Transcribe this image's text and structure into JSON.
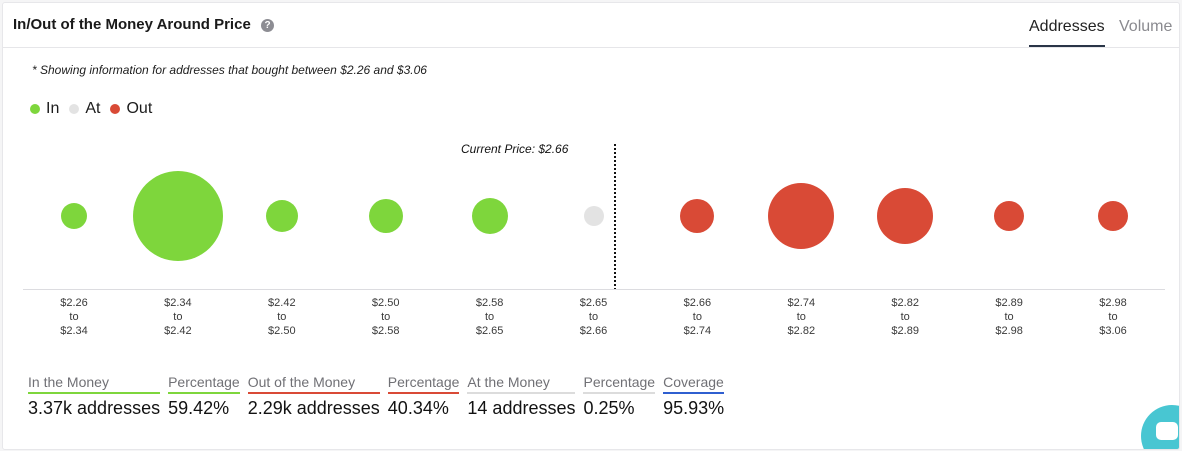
{
  "header": {
    "title": "In/Out of the Money Around Price",
    "help_icon": "?",
    "tabs": [
      "Addresses",
      "Volume"
    ]
  },
  "note": "* Showing information for addresses that bought between $2.26 and $3.06",
  "legend": [
    {
      "label": "In",
      "color": "#7ed63c"
    },
    {
      "label": "At",
      "color": "#e3e3e3"
    },
    {
      "label": "Out",
      "color": "#d94a36"
    }
  ],
  "current_price_label": "Current Price: $2.66",
  "chart_data": {
    "type": "scatter",
    "categories": [
      {
        "from": "$2.26",
        "to": "$2.34",
        "status": "In",
        "size": 13
      },
      {
        "from": "$2.34",
        "to": "$2.42",
        "status": "In",
        "size": 45
      },
      {
        "from": "$2.42",
        "to": "$2.50",
        "status": "In",
        "size": 16
      },
      {
        "from": "$2.50",
        "to": "$2.58",
        "status": "In",
        "size": 17
      },
      {
        "from": "$2.58",
        "to": "$2.65",
        "status": "In",
        "size": 18
      },
      {
        "from": "$2.65",
        "to": "$2.66",
        "status": "At",
        "size": 10
      },
      {
        "from": "$2.66",
        "to": "$2.74",
        "status": "Out",
        "size": 17
      },
      {
        "from": "$2.74",
        "to": "$2.82",
        "status": "Out",
        "size": 33
      },
      {
        "from": "$2.82",
        "to": "$2.89",
        "status": "Out",
        "size": 28
      },
      {
        "from": "$2.89",
        "to": "$2.98",
        "status": "Out",
        "size": 15
      },
      {
        "from": "$2.98",
        "to": "$3.06",
        "status": "Out",
        "size": 15
      }
    ],
    "range_connector": "to",
    "current_price": "$2.66"
  },
  "stats": [
    {
      "label": "In the Money",
      "value": "3.37k addresses",
      "color": "#7ed63c"
    },
    {
      "label": "Percentage",
      "value": "59.42%",
      "color": "#7ed63c"
    },
    {
      "label": "Out of the Money",
      "value": "2.29k addresses",
      "color": "#d94a36"
    },
    {
      "label": "Percentage",
      "value": "40.34%",
      "color": "#d94a36"
    },
    {
      "label": "At the Money",
      "value": "14 addresses",
      "color": "#dcdcdc"
    },
    {
      "label": "Percentage",
      "value": "0.25%",
      "color": "#dcdcdc"
    },
    {
      "label": "Coverage",
      "value": "95.93%",
      "color": "#2f5fd0"
    }
  ],
  "chat_icon": "chat-icon"
}
